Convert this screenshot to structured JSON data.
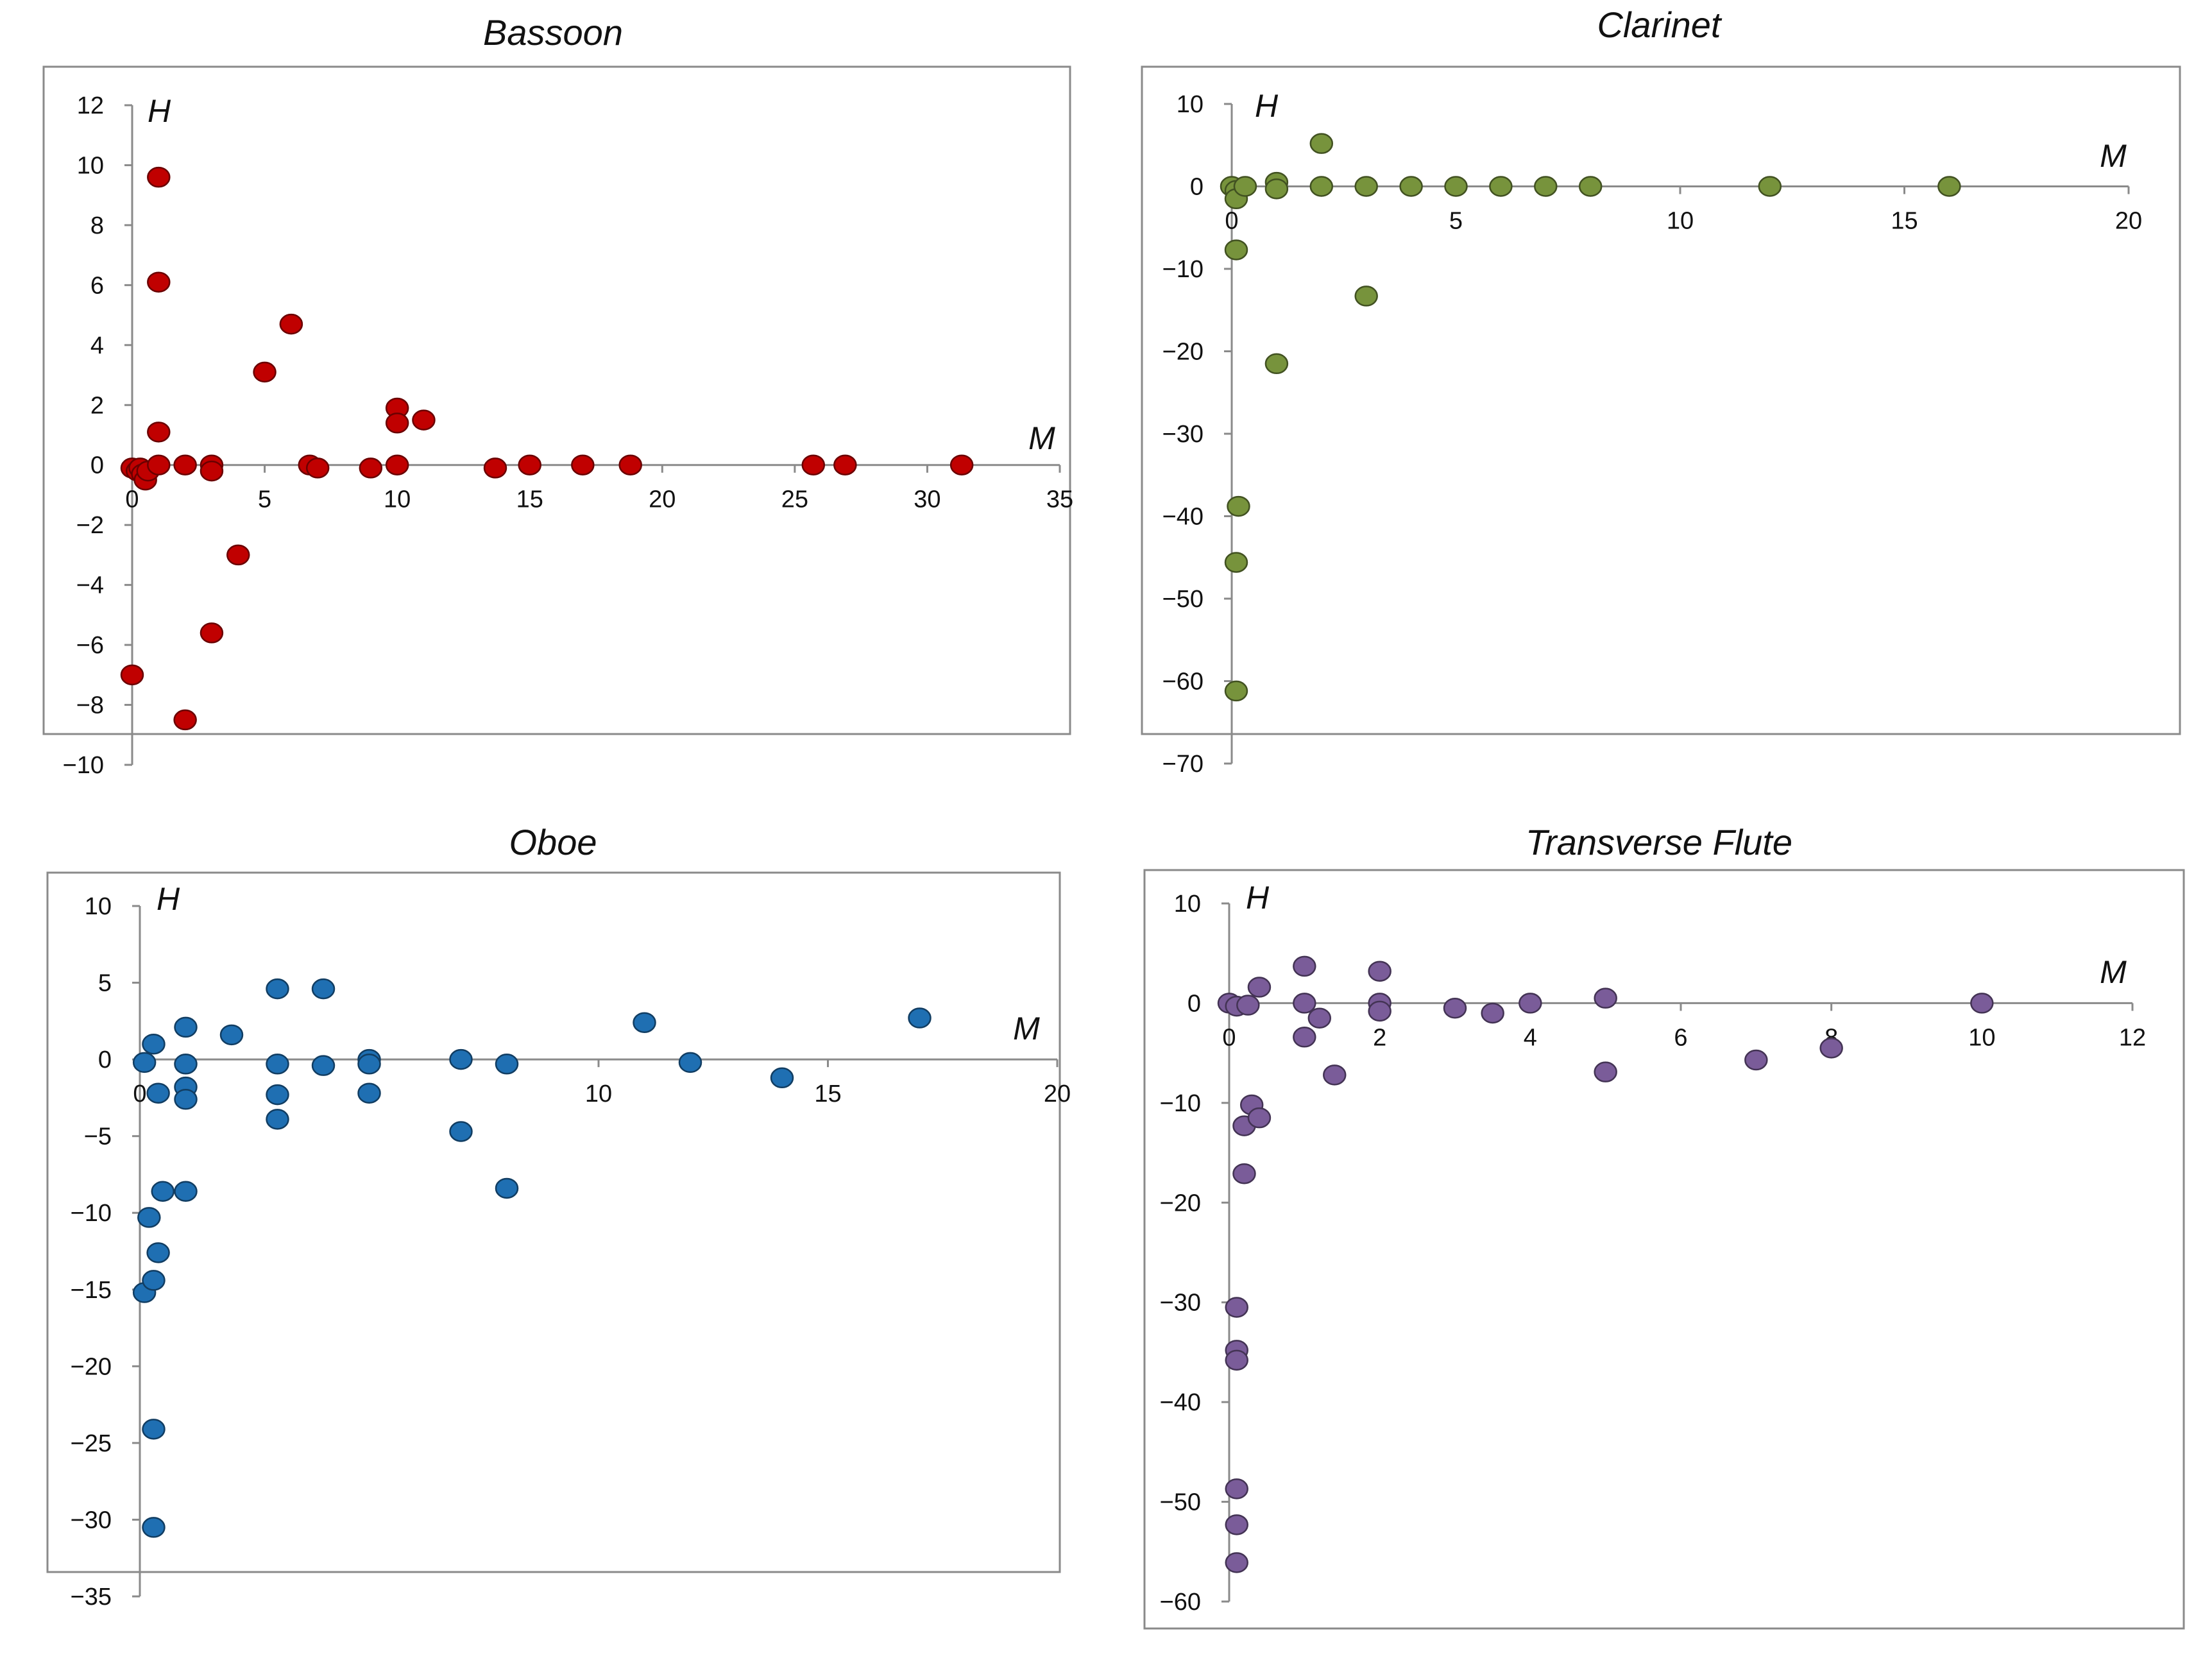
{
  "chart_data": [
    {
      "type": "scatter",
      "title": "Bassoon",
      "xlabel": "M",
      "ylabel": "H",
      "xlim": [
        0,
        35
      ],
      "ylim": [
        -10,
        12
      ],
      "xticks": [
        0,
        5,
        10,
        15,
        20,
        25,
        30,
        35
      ],
      "yticks": [
        12,
        10,
        8,
        6,
        4,
        2,
        0,
        -2,
        -4,
        -6,
        -8,
        -10
      ],
      "grid": false,
      "color": "#c00000",
      "points": [
        [
          0,
          -7
        ],
        [
          0,
          -0.1
        ],
        [
          0.2,
          -0.2
        ],
        [
          0.3,
          -0.1
        ],
        [
          0.4,
          -0.3
        ],
        [
          0.5,
          -0.5
        ],
        [
          0.6,
          -0.2
        ],
        [
          1,
          9.6
        ],
        [
          1,
          6.1
        ],
        [
          1,
          1.1
        ],
        [
          1,
          0
        ],
        [
          2,
          0
        ],
        [
          2,
          -8.5
        ],
        [
          3,
          0
        ],
        [
          3,
          -0.2
        ],
        [
          3,
          -5.6
        ],
        [
          4,
          -3
        ],
        [
          5,
          3.1
        ],
        [
          6,
          4.7
        ],
        [
          6.7,
          0
        ],
        [
          7,
          -0.1
        ],
        [
          9,
          -0.1
        ],
        [
          10,
          1.9
        ],
        [
          10,
          1.4
        ],
        [
          10,
          0
        ],
        [
          11,
          1.5
        ],
        [
          13.7,
          -0.1
        ],
        [
          15,
          0
        ],
        [
          17,
          0
        ],
        [
          18.8,
          0
        ],
        [
          25.7,
          0
        ],
        [
          26.9,
          0
        ],
        [
          31.3,
          0
        ]
      ]
    },
    {
      "type": "scatter",
      "title": "Clarinet",
      "xlabel": "M",
      "ylabel": "H",
      "xlim": [
        0,
        20
      ],
      "ylim": [
        -70,
        10
      ],
      "xticks": [
        0,
        5,
        10,
        15,
        20
      ],
      "yticks": [
        10,
        0,
        -10,
        -20,
        -30,
        -40,
        -50,
        -60,
        -70
      ],
      "grid": false,
      "color": "#77933c",
      "points": [
        [
          0,
          0
        ],
        [
          0.1,
          -0.5
        ],
        [
          0.1,
          -1.5
        ],
        [
          0.1,
          -7.7
        ],
        [
          0.15,
          -38.8
        ],
        [
          0.1,
          -45.6
        ],
        [
          0.1,
          -61.2
        ],
        [
          0.3,
          0
        ],
        [
          1,
          0.5
        ],
        [
          1,
          -0.3
        ],
        [
          1,
          -21.5
        ],
        [
          2,
          5.2
        ],
        [
          2,
          0
        ],
        [
          3,
          0
        ],
        [
          3,
          -13.3
        ],
        [
          4,
          0
        ],
        [
          5,
          0
        ],
        [
          6,
          0
        ],
        [
          7,
          0
        ],
        [
          8,
          0
        ],
        [
          12,
          0
        ],
        [
          16,
          0
        ]
      ]
    },
    {
      "type": "scatter",
      "title": "Oboe",
      "xlabel": "M",
      "ylabel": "H",
      "xlim": [
        0,
        20
      ],
      "ylim": [
        -35,
        10
      ],
      "xticks": [
        0,
        5,
        10,
        15,
        20
      ],
      "yticks": [
        10,
        5,
        0,
        -5,
        -10,
        -15,
        -20,
        -25,
        -30,
        -35
      ],
      "grid": false,
      "color": "#1f6fb2",
      "points": [
        [
          0.1,
          -0.2
        ],
        [
          0.2,
          -10.3
        ],
        [
          0.1,
          -15.2
        ],
        [
          0.3,
          -24.1
        ],
        [
          0.3,
          -30.5
        ],
        [
          0.3,
          -14.4
        ],
        [
          0.3,
          1
        ],
        [
          0.4,
          -2.2
        ],
        [
          0.4,
          -12.6
        ],
        [
          0.5,
          -8.6
        ],
        [
          1,
          2.1
        ],
        [
          1,
          -0.3
        ],
        [
          1,
          -1.8
        ],
        [
          1,
          -2.6
        ],
        [
          1,
          -8.6
        ],
        [
          2,
          1.6
        ],
        [
          3,
          4.6
        ],
        [
          3,
          -0.3
        ],
        [
          3,
          -2.3
        ],
        [
          3,
          -3.9
        ],
        [
          4,
          4.6
        ],
        [
          4,
          -0.4
        ],
        [
          5,
          0
        ],
        [
          5,
          -0.3
        ],
        [
          5,
          -2.2
        ],
        [
          7,
          0
        ],
        [
          7,
          -4.7
        ],
        [
          8,
          -0.3
        ],
        [
          8,
          -8.4
        ],
        [
          11,
          2.4
        ],
        [
          12,
          -0.2
        ],
        [
          14,
          -1.2
        ],
        [
          17,
          2.7
        ]
      ]
    },
    {
      "type": "scatter",
      "title": "Transverse Flute",
      "xlabel": "M",
      "ylabel": "H",
      "xlim": [
        0,
        12
      ],
      "ylim": [
        -60,
        10
      ],
      "xticks": [
        0,
        2,
        4,
        6,
        8,
        10,
        12
      ],
      "yticks": [
        10,
        0,
        -10,
        -20,
        -30,
        -40,
        -50,
        -60
      ],
      "grid": false,
      "color": "#7a5c99",
      "points": [
        [
          0,
          0
        ],
        [
          0.1,
          -0.3
        ],
        [
          0.25,
          -0.2
        ],
        [
          0.2,
          -12.3
        ],
        [
          0.2,
          -17.1
        ],
        [
          0.3,
          -10.2
        ],
        [
          0.4,
          -11.5
        ],
        [
          0.4,
          1.6
        ],
        [
          0.1,
          -30.5
        ],
        [
          0.1,
          -34.8
        ],
        [
          0.1,
          -35.8
        ],
        [
          0.1,
          -48.7
        ],
        [
          0.1,
          -52.3
        ],
        [
          0.1,
          -56.1
        ],
        [
          1,
          3.7
        ],
        [
          1,
          0
        ],
        [
          1,
          -3.4
        ],
        [
          1.2,
          -1.5
        ],
        [
          1.4,
          -7.2
        ],
        [
          2,
          3.2
        ],
        [
          2,
          0
        ],
        [
          2,
          -0.8
        ],
        [
          3,
          -0.5
        ],
        [
          3.5,
          -1
        ],
        [
          4,
          0
        ],
        [
          5,
          0.5
        ],
        [
          5,
          -6.9
        ],
        [
          7,
          -5.7
        ],
        [
          8,
          -4.5
        ],
        [
          10,
          0
        ]
      ]
    }
  ]
}
